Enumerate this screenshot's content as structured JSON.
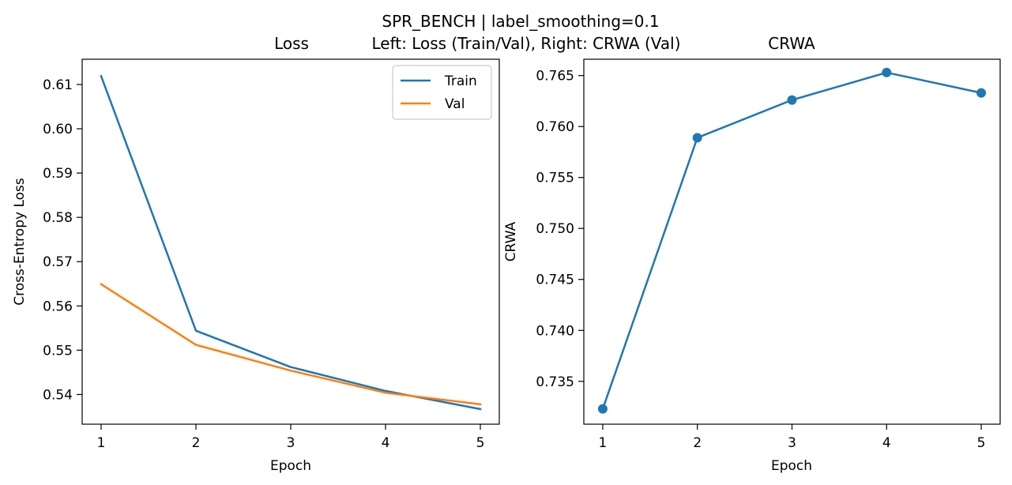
{
  "suptitle_line1": "SPR_BENCH | label_smoothing=0.1",
  "suptitle_line2": "Left: Loss (Train/Val), Right: CRWA (Val)",
  "chart_data": [
    {
      "type": "line",
      "title": "Loss",
      "xlabel": "Epoch",
      "ylabel": "Cross-Entropy Loss",
      "x": [
        1,
        2,
        3,
        4,
        5
      ],
      "xticks": [
        "1",
        "2",
        "3",
        "4",
        "5"
      ],
      "xlim": [
        0.8,
        5.2
      ],
      "ylim": [
        0.5333,
        0.6157
      ],
      "yticks": [
        "0.54",
        "0.55",
        "0.56",
        "0.57",
        "0.58",
        "0.59",
        "0.60",
        "0.61"
      ],
      "ytick_values": [
        0.54,
        0.55,
        0.56,
        0.57,
        0.58,
        0.59,
        0.6,
        0.61
      ],
      "grid": false,
      "legend": "top-right",
      "series": [
        {
          "name": "Train",
          "color": "#1f77b4",
          "values": [
            0.6119,
            0.5544,
            0.5462,
            0.5408,
            0.5367
          ]
        },
        {
          "name": "Val",
          "color": "#ff7f0e",
          "values": [
            0.5649,
            0.5512,
            0.5454,
            0.5404,
            0.5378
          ]
        }
      ]
    },
    {
      "type": "line",
      "title": "CRWA",
      "xlabel": "Epoch",
      "ylabel": "CRWA",
      "x": [
        1,
        2,
        3,
        4,
        5
      ],
      "xticks": [
        "1",
        "2",
        "3",
        "4",
        "5"
      ],
      "xlim": [
        0.8,
        5.2
      ],
      "ylim": [
        0.7308,
        0.7666
      ],
      "yticks": [
        "0.735",
        "0.740",
        "0.745",
        "0.750",
        "0.755",
        "0.760",
        "0.765"
      ],
      "ytick_values": [
        0.735,
        0.74,
        0.745,
        0.75,
        0.755,
        0.76,
        0.765
      ],
      "grid": false,
      "markers": true,
      "series": [
        {
          "color": "#1f77b4",
          "values": [
            0.7323,
            0.7589,
            0.7626,
            0.7653,
            0.7633
          ]
        }
      ]
    }
  ]
}
